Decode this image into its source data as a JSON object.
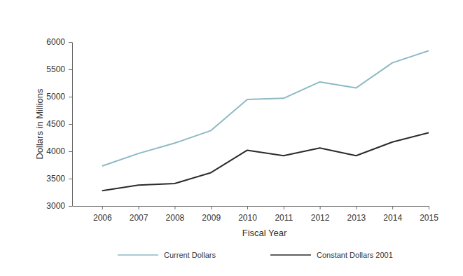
{
  "chart_data": {
    "type": "line",
    "x_label": "Fiscal Year",
    "y_label": "Dollars in Millions",
    "categories": [
      "2006",
      "2007",
      "2008",
      "2009",
      "2010",
      "2011",
      "2012",
      "2013",
      "2014",
      "2015"
    ],
    "series": [
      {
        "name": "Current Dollars",
        "color": "#8db9c6",
        "values": [
          3730,
          3960,
          4150,
          4380,
          4950,
          4970,
          5270,
          5160,
          5620,
          5840
        ]
      },
      {
        "name": "Constant Dollars 2001",
        "color": "#2b2b2b",
        "values": [
          3280,
          3380,
          3410,
          3610,
          4020,
          3920,
          4060,
          3920,
          4170,
          4340
        ]
      }
    ],
    "ylim": [
      3000,
      6000
    ],
    "yticks": [
      3000,
      3500,
      4000,
      4500,
      5000,
      5500,
      6000
    ],
    "grid": false,
    "legend": "bottom"
  }
}
